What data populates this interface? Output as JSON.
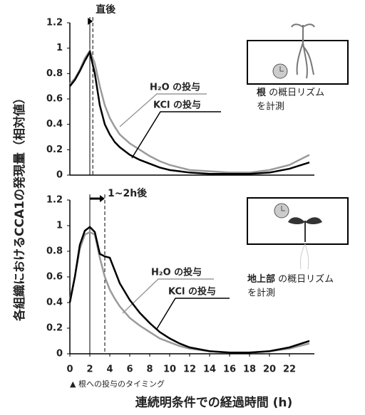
{
  "chart_data": [
    {
      "type": "line",
      "annotation": "直後",
      "vlines": [
        2,
        2.3
      ],
      "x": [
        0,
        0.5,
        1,
        1.5,
        2,
        2.5,
        3,
        3.5,
        4,
        4.5,
        5,
        6,
        7,
        8,
        9,
        10,
        11,
        12,
        14,
        16,
        18,
        20,
        22,
        24
      ],
      "xlim": [
        0,
        24.5
      ],
      "ylim": [
        0,
        1.2
      ],
      "yticks": [
        0,
        0.2,
        0.4,
        0.6,
        0.8,
        1,
        1.2
      ],
      "series": [
        {
          "name": "H₂O の投与",
          "color": "#9a9a9a",
          "values": [
            0.72,
            0.76,
            0.83,
            0.92,
            0.98,
            0.88,
            0.7,
            0.55,
            0.45,
            0.38,
            0.32,
            0.25,
            0.2,
            0.15,
            0.11,
            0.08,
            0.06,
            0.04,
            0.03,
            0.02,
            0.02,
            0.04,
            0.08,
            0.16
          ]
        },
        {
          "name": "KCl の投与",
          "color": "#000000",
          "values": [
            0.7,
            0.75,
            0.82,
            0.9,
            0.97,
            0.8,
            0.55,
            0.4,
            0.32,
            0.26,
            0.22,
            0.16,
            0.12,
            0.09,
            0.06,
            0.04,
            0.03,
            0.02,
            0.01,
            0.01,
            0.01,
            0.02,
            0.05,
            0.1
          ]
        }
      ],
      "inset": {
        "bold": "根",
        "text": " の概日リズム",
        "line2": "を計測"
      }
    },
    {
      "type": "line",
      "annotation": "1~2h後",
      "vlines": [
        2,
        3.5
      ],
      "x": [
        0,
        0.5,
        1,
        1.5,
        2,
        2.5,
        3,
        3.5,
        4,
        4.5,
        5,
        6,
        7,
        8,
        9,
        10,
        11,
        12,
        14,
        16,
        18,
        20,
        22,
        24
      ],
      "xlim": [
        0,
        24.5
      ],
      "xticks": [
        0,
        2,
        4,
        6,
        8,
        10,
        12,
        14,
        16,
        18,
        20,
        22
      ],
      "ylim": [
        0,
        1.2
      ],
      "yticks": [
        0,
        0.2,
        0.4,
        0.6,
        0.8,
        1,
        1.2
      ],
      "series": [
        {
          "name": "H₂O の投与",
          "color": "#9a9a9a",
          "values": [
            0.42,
            0.6,
            0.82,
            0.93,
            0.95,
            0.93,
            0.75,
            0.6,
            0.5,
            0.43,
            0.37,
            0.28,
            0.22,
            0.17,
            0.12,
            0.09,
            0.06,
            0.04,
            0.02,
            0.01,
            0.01,
            0.02,
            0.04,
            0.08
          ]
        },
        {
          "name": "KCl の投与",
          "color": "#000000",
          "values": [
            0.4,
            0.6,
            0.85,
            0.96,
            0.99,
            0.95,
            0.78,
            0.76,
            0.75,
            0.65,
            0.55,
            0.42,
            0.32,
            0.24,
            0.17,
            0.12,
            0.08,
            0.05,
            0.02,
            0.01,
            0.01,
            0.02,
            0.05,
            0.1
          ]
        }
      ],
      "inset": {
        "bold": "地上部",
        "text": " の概日リズム",
        "line2": "を計測"
      }
    }
  ],
  "shared": {
    "ylabel": "各組織におけるCCA1の発現量（相対値）",
    "xlabel": "連続明条件での経過時間 (h)",
    "note": "▲ 根への投与のタイミング"
  }
}
